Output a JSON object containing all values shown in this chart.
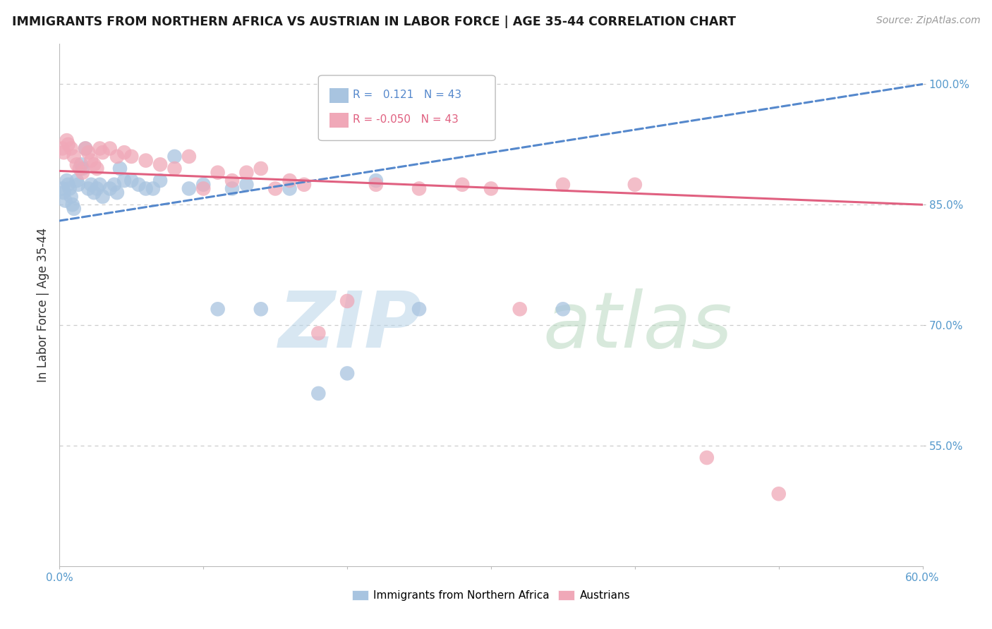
{
  "title": "IMMIGRANTS FROM NORTHERN AFRICA VS AUSTRIAN IN LABOR FORCE | AGE 35-44 CORRELATION CHART",
  "source": "Source: ZipAtlas.com",
  "ylabel": "In Labor Force | Age 35-44",
  "xlim": [
    0.0,
    0.6
  ],
  "ylim": [
    0.4,
    1.05
  ],
  "yticks": [
    0.55,
    0.7,
    0.85,
    1.0
  ],
  "ytick_labels": [
    "55.0%",
    "70.0%",
    "85.0%",
    "100.0%"
  ],
  "xticks": [
    0.0,
    0.1,
    0.2,
    0.3,
    0.4,
    0.5,
    0.6
  ],
  "xtick_labels": [
    "0.0%",
    "",
    "",
    "",
    "",
    "",
    "60.0%"
  ],
  "blue_R": 0.121,
  "blue_N": 43,
  "pink_R": -0.05,
  "pink_N": 43,
  "blue_color": "#a8c4e0",
  "pink_color": "#f0a8b8",
  "blue_line_color": "#5588cc",
  "pink_line_color": "#e06080",
  "legend_blue": "Immigrants from Northern Africa",
  "legend_pink": "Austrians",
  "blue_x": [
    0.002,
    0.003,
    0.004,
    0.005,
    0.006,
    0.007,
    0.008,
    0.009,
    0.01,
    0.012,
    0.013,
    0.015,
    0.016,
    0.018,
    0.02,
    0.022,
    0.024,
    0.026,
    0.028,
    0.03,
    0.035,
    0.038,
    0.04,
    0.042,
    0.045,
    0.05,
    0.055,
    0.06,
    0.065,
    0.07,
    0.08,
    0.09,
    0.1,
    0.11,
    0.12,
    0.13,
    0.14,
    0.16,
    0.18,
    0.2,
    0.22,
    0.25,
    0.35
  ],
  "blue_y": [
    0.87,
    0.865,
    0.855,
    0.88,
    0.875,
    0.87,
    0.86,
    0.85,
    0.845,
    0.88,
    0.875,
    0.9,
    0.895,
    0.92,
    0.87,
    0.875,
    0.865,
    0.87,
    0.875,
    0.86,
    0.87,
    0.875,
    0.865,
    0.895,
    0.88,
    0.88,
    0.875,
    0.87,
    0.87,
    0.88,
    0.91,
    0.87,
    0.875,
    0.72,
    0.87,
    0.875,
    0.72,
    0.87,
    0.615,
    0.64,
    0.88,
    0.72,
    0.72
  ],
  "pink_x": [
    0.002,
    0.003,
    0.005,
    0.006,
    0.008,
    0.01,
    0.012,
    0.014,
    0.016,
    0.018,
    0.02,
    0.022,
    0.024,
    0.026,
    0.028,
    0.03,
    0.035,
    0.04,
    0.045,
    0.05,
    0.06,
    0.07,
    0.08,
    0.09,
    0.1,
    0.11,
    0.12,
    0.13,
    0.14,
    0.15,
    0.16,
    0.17,
    0.18,
    0.2,
    0.22,
    0.25,
    0.28,
    0.3,
    0.32,
    0.35,
    0.4,
    0.45,
    0.5
  ],
  "pink_y": [
    0.92,
    0.915,
    0.93,
    0.925,
    0.92,
    0.91,
    0.9,
    0.895,
    0.89,
    0.92,
    0.915,
    0.905,
    0.9,
    0.895,
    0.92,
    0.915,
    0.92,
    0.91,
    0.915,
    0.91,
    0.905,
    0.9,
    0.895,
    0.91,
    0.87,
    0.89,
    0.88,
    0.89,
    0.895,
    0.87,
    0.88,
    0.875,
    0.69,
    0.73,
    0.875,
    0.87,
    0.875,
    0.87,
    0.72,
    0.875,
    0.875,
    0.535,
    0.49
  ]
}
